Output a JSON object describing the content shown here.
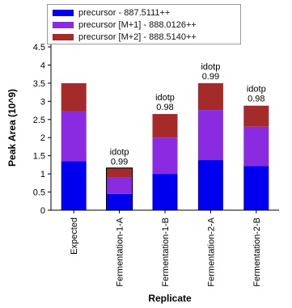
{
  "chart_data": {
    "type": "bar",
    "stacked": true,
    "categories": [
      "Expected",
      "Fermentation-1-A",
      "Fermentation-1-B",
      "Fermentation-2-A",
      "Fermentation-2-B"
    ],
    "series": [
      {
        "name": "precursor - 887.5111++",
        "color": "#0000ee",
        "values": [
          1.35,
          0.45,
          1.0,
          1.38,
          1.22
        ]
      },
      {
        "name": "precursor [M+1] - 888.0126++",
        "color": "#8a2be2",
        "values": [
          1.38,
          0.45,
          1.0,
          1.38,
          1.08
        ]
      },
      {
        "name": "precursor [M+2] - 888.5140++",
        "color": "#a52a2a",
        "values": [
          0.77,
          0.25,
          0.65,
          0.74,
          0.58
        ]
      }
    ],
    "annotations": [
      {
        "category": "Fermentation-1-A",
        "label": "idotp",
        "value": "0.99"
      },
      {
        "category": "Fermentation-1-B",
        "label": "idotp",
        "value": "0.98"
      },
      {
        "category": "Fermentation-2-A",
        "label": "idotp",
        "value": "0.99"
      },
      {
        "category": "Fermentation-2-B",
        "label": "idotp",
        "value": "0.98"
      }
    ],
    "selected_category": "Fermentation-1-A",
    "xlabel": "Replicate",
    "ylabel": "Peak Area (10^9)",
    "ylim": [
      0,
      4.5
    ],
    "yticks": [
      "0",
      "0.5",
      "1",
      "1.5",
      "2",
      "2.5",
      "3",
      "3.5",
      "4",
      "4.5"
    ],
    "grid": false,
    "legend_position": "top"
  }
}
